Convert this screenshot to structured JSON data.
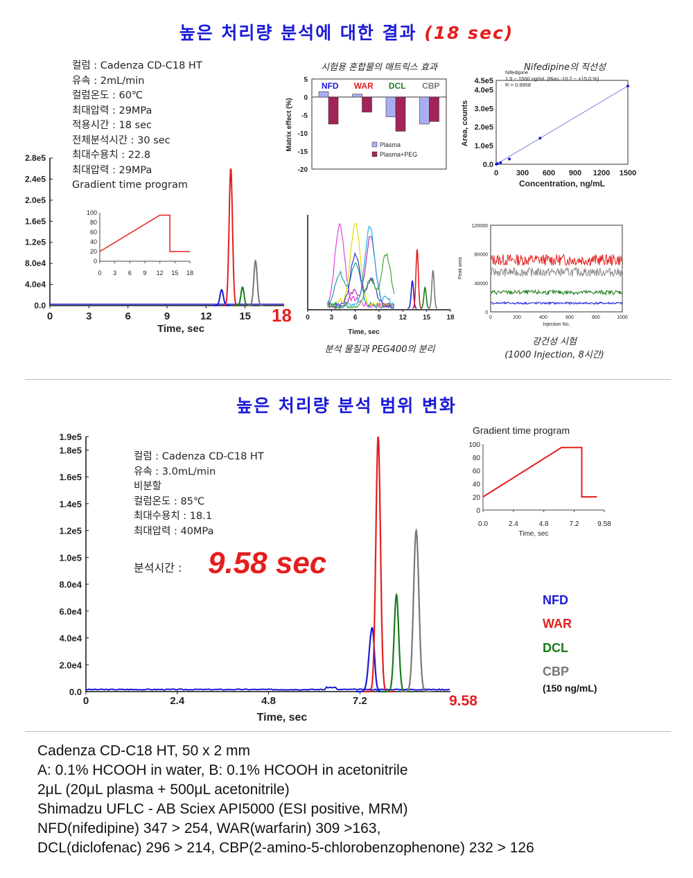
{
  "top": {
    "title": "높은 처리량 분석에 대한 결과",
    "title_highlight": "(18 sec)",
    "conditions": [
      "컬럼 : Cadenza CD-C18 HT",
      "유속 : 2mL/min",
      "컬럼온도 : 60℃",
      "최대압력 : 29MPa",
      "적용시간 : 18 sec",
      "전체분석시간 : 30 sec",
      "최대수용치 : 22.8",
      "최대압력 : 29MPa",
      "Gradient time program"
    ],
    "end_time_label": "18",
    "matrix_caption": "시험용 혼합물의 매트릭스 효과",
    "linearity_caption": "Nifedipine의 직선성",
    "separation_caption": "분석 물질과 PEG400의 분리",
    "robust_caption_1": "강건성 시험",
    "robust_caption_2": "(1000 Injection, 8시간)"
  },
  "bottom": {
    "title": "높은 처리량 분석 범위 변화",
    "conditions": [
      "컬럼 : Cadenza CD-C18 HT",
      "유속 : 3.0mL/min",
      "비분할",
      "컬럼온도 : 85℃",
      "최대수용치 : 18.1",
      "최대압력 : 40MPa"
    ],
    "analysis_time_label": "분석시간 :",
    "analysis_time_value": "9.58 sec",
    "end_time_label": "9.58",
    "legend": [
      {
        "name": "NFD",
        "color": "#1a1ad6"
      },
      {
        "name": "WAR",
        "color": "#e41e1e"
      },
      {
        "name": "DCL",
        "color": "#1a7a1a"
      },
      {
        "name": "CBP",
        "color": "#777777"
      }
    ],
    "legend_note": "(150 ng/mL)"
  },
  "footer": [
    "Cadenza CD-C18 HT, 50 x 2 mm",
    "A: 0.1% HCOOH in water, B: 0.1% HCOOH in acetonitrile",
    "2μL (20μL plasma + 500μL acetonitrile)",
    "Shimadzu UFLC - AB Sciex API5000 (ESI positive, MRM)",
    "NFD(nifedipine) 347 > 254, WAR(warfarin) 309 >163,",
    "DCL(diclofenac) 296 > 214, CBP(2-amino-5-chlorobenzophenone) 232 > 126"
  ],
  "chart_data": [
    {
      "id": "chrom18",
      "type": "line",
      "xlabel": "Time, sec",
      "ylabel": "",
      "xlim": [
        0,
        18
      ],
      "ylim": [
        0,
        280000
      ],
      "x_ticks": [
        "0",
        "3",
        "6",
        "9",
        "12",
        "15"
      ],
      "y_ticks": [
        "0.0",
        "4.0e4",
        "8.0e4",
        "1.2e5",
        "1.6e5",
        "2.0e5",
        "2.4e5",
        "2.8e5"
      ],
      "peaks": [
        {
          "series": "NFD",
          "color": "#1a1ad6",
          "t": 13.2,
          "height": 30000,
          "width": 0.13
        },
        {
          "series": "WAR",
          "color": "#e41e1e",
          "t": 13.9,
          "height": 260000,
          "width": 0.13
        },
        {
          "series": "DCL",
          "color": "#1a7a1a",
          "t": 14.8,
          "height": 35000,
          "width": 0.12
        },
        {
          "series": "CBP",
          "color": "#777777",
          "t": 15.8,
          "height": 85000,
          "width": 0.13
        }
      ]
    },
    {
      "id": "gradient18",
      "type": "line",
      "xlim": [
        0,
        18
      ],
      "ylim": [
        0,
        100
      ],
      "x_ticks": [
        "0",
        "3",
        "6",
        "9",
        "12",
        "15",
        "18"
      ],
      "y_ticks": [
        "0",
        "20",
        "40",
        "60",
        "80",
        "100"
      ],
      "x": [
        0,
        12,
        14,
        14,
        15.9,
        18
      ],
      "y": [
        20,
        95,
        95,
        20,
        20,
        20
      ]
    },
    {
      "id": "matrix",
      "type": "bar",
      "ylabel": "Matrix effect (%)",
      "ylim": [
        -20,
        5
      ],
      "y_ticks": [
        "5",
        "0",
        "-5",
        "-10",
        "-15",
        "-20"
      ],
      "categories": [
        "NFD",
        "WAR",
        "DCL",
        "CBP"
      ],
      "category_colors": [
        "#1a1ad6",
        "#e41e1e",
        "#1a7a1a",
        "#777777"
      ],
      "series": [
        {
          "name": "Plasma",
          "color": "#a9aef0",
          "values": [
            1.5,
            0.8,
            -5.5,
            -7.5
          ]
        },
        {
          "name": "Plasma+PEG",
          "color": "#a3245a",
          "values": [
            -7.5,
            -4.2,
            -9.5,
            -6.8
          ]
        }
      ]
    },
    {
      "id": "linearity",
      "type": "scatter",
      "xlabel": "Concentration, ng/mL",
      "ylabel": "Area, counts",
      "xlim": [
        0,
        1500
      ],
      "ylim": [
        0,
        450000
      ],
      "x_ticks": [
        "0",
        "300",
        "600",
        "900",
        "1200",
        "1500"
      ],
      "y_ticks": [
        "0.0",
        "1.0e5",
        "2.0e5",
        "3.0e5",
        "4.0e5",
        "4.5e5"
      ],
      "annotation": [
        "Nifedipine",
        "1.5 ~ 1500 ng/mL (Bias -10.2 ~ +15.0 %)",
        "R = 0.9958"
      ],
      "x": [
        1.5,
        15,
        50,
        150,
        500,
        1500
      ],
      "y": [
        300,
        3000,
        9000,
        28000,
        140000,
        420000
      ]
    },
    {
      "id": "separation",
      "type": "line",
      "xlabel": "Time, sec",
      "xlim": [
        0,
        18
      ],
      "x_ticks": [
        "0",
        "3",
        "6",
        "9",
        "12",
        "15",
        "18"
      ]
    },
    {
      "id": "robustness",
      "type": "line",
      "xlabel": "Injection No.",
      "ylabel": "Peak area",
      "xlim": [
        0,
        1000
      ],
      "ylim": [
        0,
        120000
      ],
      "x_ticks": [
        "0",
        "200",
        "400",
        "600",
        "800",
        "1000"
      ],
      "y_ticks": [
        "0",
        "40000",
        "80000",
        "120000"
      ],
      "series": [
        {
          "color": "#e41e1e",
          "mean": 72000,
          "spread": 8000
        },
        {
          "color": "#888888",
          "mean": 55000,
          "spread": 6000
        },
        {
          "color": "#1a7a1a",
          "mean": 27000,
          "spread": 3000
        },
        {
          "color": "#1a1ad6",
          "mean": 12000,
          "spread": 1500
        }
      ]
    },
    {
      "id": "chrom958",
      "type": "line",
      "xlabel": "Time, sec",
      "xlim": [
        0,
        9.58
      ],
      "ylim": [
        0,
        190000
      ],
      "x_ticks": [
        "0",
        "2.4",
        "4.8",
        "7.2"
      ],
      "y_ticks": [
        "0.0",
        "2.0e4",
        "4.0e4",
        "6.0e4",
        "8.0e4",
        "1.0e5",
        "1.2e5",
        "1.4e5",
        "1.6e5",
        "1.8e5",
        "1.9e5"
      ],
      "peaks": [
        {
          "series": "NFD",
          "color": "#1a1ad6",
          "t": 7.5,
          "height": 40000,
          "width": 0.07
        },
        {
          "series": "WAR",
          "color": "#e41e1e",
          "t": 7.68,
          "height": 190000,
          "width": 0.06
        },
        {
          "series": "DCL",
          "color": "#1a7a1a",
          "t": 8.16,
          "height": 72000,
          "width": 0.06
        },
        {
          "series": "CBP",
          "color": "#777777",
          "t": 8.68,
          "height": 120000,
          "width": 0.07
        }
      ]
    },
    {
      "id": "gradient958",
      "type": "line",
      "title": "Gradient time program",
      "xlabel": "Time, sec",
      "xlim": [
        0,
        9.58
      ],
      "ylim": [
        0,
        100
      ],
      "x_ticks": [
        "0.0",
        "2.4",
        "4.8",
        "7.2",
        "9.58"
      ],
      "y_ticks": [
        "0",
        "20",
        "40",
        "60",
        "80",
        "100"
      ],
      "x": [
        0,
        6.2,
        7.8,
        7.8,
        9.0
      ],
      "y": [
        20,
        95,
        95,
        20,
        20
      ]
    }
  ]
}
